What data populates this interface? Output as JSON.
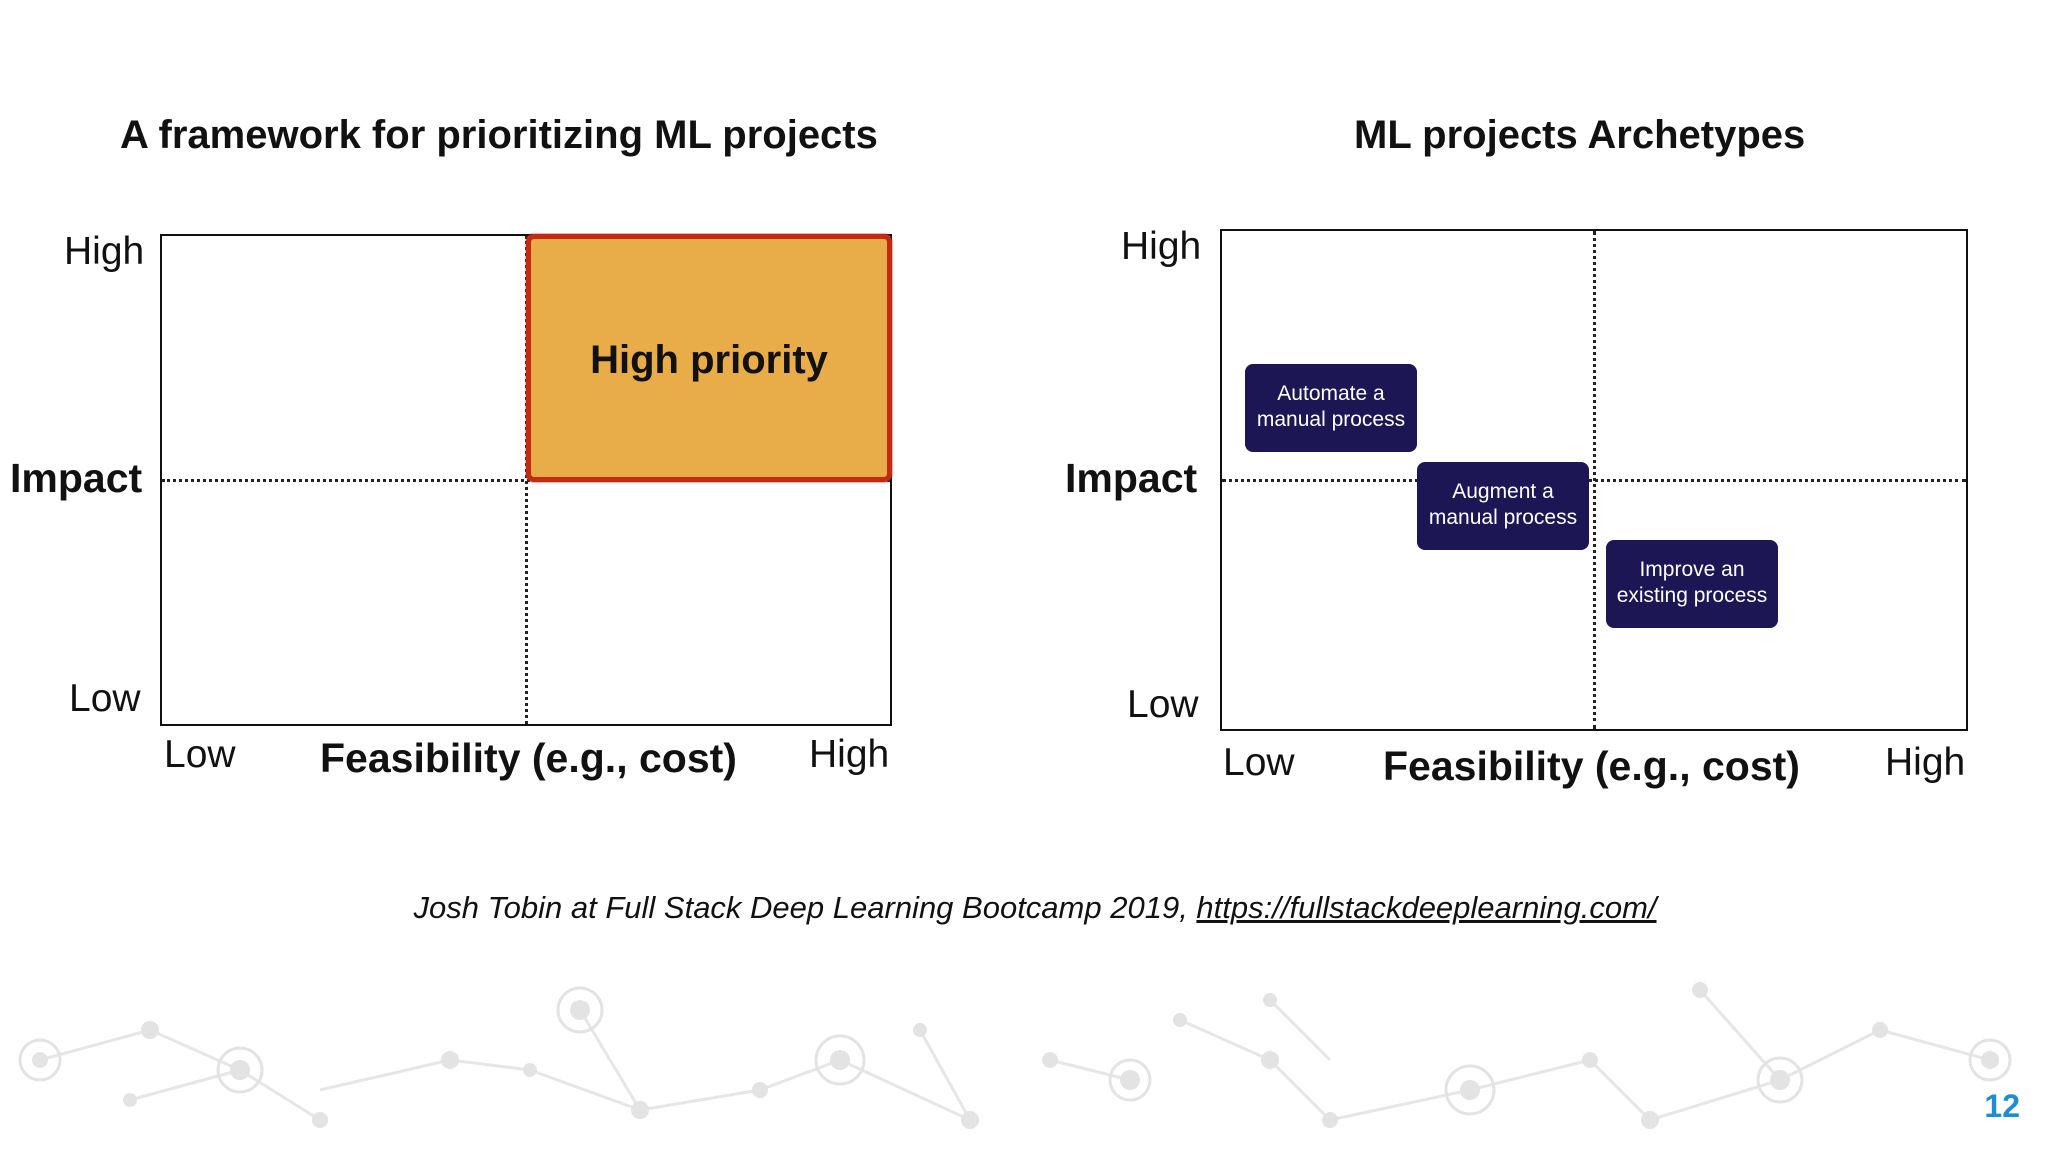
{
  "left_panel": {
    "title": "A framework for prioritizing ML projects",
    "y_high": "High",
    "y_title": "Impact",
    "y_low": "Low",
    "x_low": "Low",
    "x_title": "Feasibility (e.g., cost)",
    "x_high": "High",
    "highlight_label": "High priority",
    "highlight_fill": "#e8ac48",
    "highlight_border": "#c42a12"
  },
  "right_panel": {
    "title": "ML projects Archetypes",
    "y_high": "High",
    "y_title": "Impact",
    "y_low": "Low",
    "x_low": "Low",
    "x_title": "Feasibility (e.g., cost)",
    "x_high": "High",
    "archetypes": [
      {
        "line1": "Automate a",
        "line2": "manual process"
      },
      {
        "line1": "Augment a",
        "line2": "manual process"
      },
      {
        "line1": "Improve an",
        "line2": "existing process"
      }
    ],
    "box_color": "#1d1654"
  },
  "citation": {
    "text": "Josh Tobin at Full Stack Deep Learning Bootcamp 2019, ",
    "link": "https://fullstackdeeplearning.com/"
  },
  "page_number": "12",
  "accent_color": "#1f8cd6"
}
